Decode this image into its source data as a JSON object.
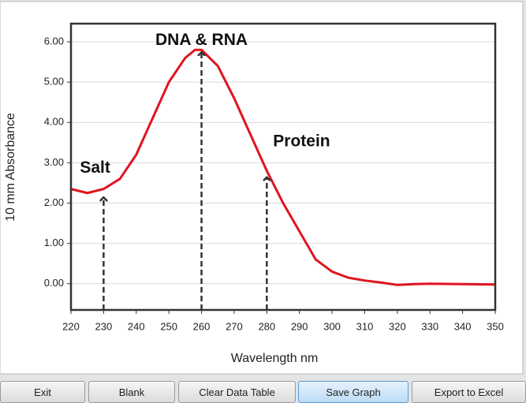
{
  "chart_data": {
    "type": "line",
    "x_label": "Wavelength nm",
    "y_label": "10 mm Absorbance",
    "x": [
      220,
      225,
      230,
      235,
      240,
      245,
      250,
      255,
      258,
      260,
      265,
      270,
      275,
      280,
      285,
      290,
      295,
      300,
      305,
      310,
      315,
      320,
      325,
      330,
      340,
      350
    ],
    "values": [
      2.35,
      2.25,
      2.35,
      2.6,
      3.2,
      4.1,
      5.0,
      5.6,
      5.8,
      5.8,
      5.4,
      4.6,
      3.7,
      2.8,
      2.0,
      1.3,
      0.6,
      0.3,
      0.15,
      0.08,
      0.03,
      -0.03,
      -0.01,
      0.0,
      -0.01,
      -0.02
    ],
    "color": "#e0141e",
    "xlim": [
      220,
      350
    ],
    "ylim": [
      -0.65,
      6.45
    ],
    "xticks": [
      220,
      230,
      240,
      250,
      260,
      270,
      280,
      290,
      300,
      310,
      320,
      330,
      340,
      350
    ],
    "yticks": [
      {
        "value": 0,
        "label": "0.00"
      },
      {
        "value": 1,
        "label": "1.00"
      },
      {
        "value": 2,
        "label": "2.00"
      },
      {
        "value": 3,
        "label": "3.00"
      },
      {
        "value": 4,
        "label": "4.00"
      },
      {
        "value": 5,
        "label": "5.00"
      },
      {
        "value": 6,
        "label": "6.00"
      }
    ],
    "grid": true,
    "annotations": [
      {
        "text": "Salt",
        "x": 230,
        "y": 2.2
      },
      {
        "text": "DNA & RNA",
        "x": 260,
        "y": 5.8
      },
      {
        "text": "Protein",
        "x": 280,
        "y": 2.7
      }
    ]
  },
  "buttons": [
    "Exit",
    "Blank",
    "Clear Data Table",
    "Save Graph",
    "Export to Excel"
  ]
}
